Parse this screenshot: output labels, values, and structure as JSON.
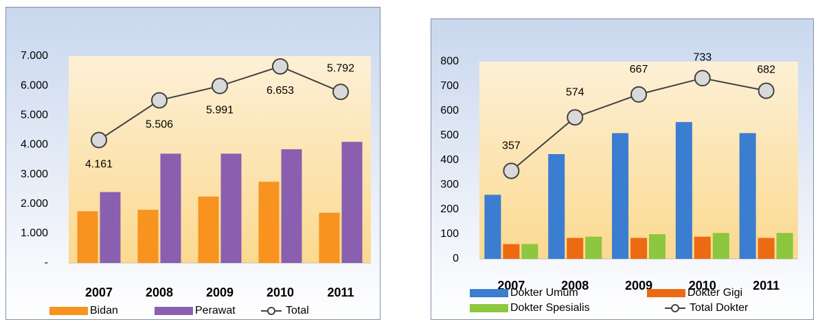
{
  "chart_data": [
    {
      "type": "bar",
      "categories": [
        "2007",
        "2008",
        "2009",
        "2010",
        "2011"
      ],
      "series": [
        {
          "name": "Bidan",
          "color": "#f7931e",
          "values": [
            1750,
            1800,
            2250,
            2750,
            1700
          ]
        },
        {
          "name": "Perawat",
          "color": "#8a5fb0",
          "values": [
            2400,
            3700,
            3700,
            3850,
            4100
          ]
        },
        {
          "name": "Total",
          "type": "line",
          "color": "#404040",
          "values": [
            4161,
            5506,
            5991,
            6653,
            5792
          ],
          "value_labels": [
            "4.161",
            "5.506",
            "5.991",
            "6.653",
            "5.792"
          ]
        }
      ],
      "ylim": [
        0,
        7000
      ],
      "yticks": [
        {
          "value": 0,
          "label": "-"
        },
        {
          "value": 1000,
          "label": "1.000"
        },
        {
          "value": 2000,
          "label": "2.000"
        },
        {
          "value": 3000,
          "label": "3.000"
        },
        {
          "value": 4000,
          "label": "4.000"
        },
        {
          "value": 5000,
          "label": "5.000"
        },
        {
          "value": 6000,
          "label": "6.000"
        },
        {
          "value": 7000,
          "label": "7.000"
        }
      ]
    },
    {
      "type": "bar",
      "categories": [
        "2007",
        "2008",
        "2009",
        "2010",
        "2011"
      ],
      "series": [
        {
          "name": "Dokter Umum",
          "color": "#3b7dd0",
          "values": [
            260,
            425,
            510,
            555,
            510
          ]
        },
        {
          "name": "Dokter Gigi",
          "color": "#ec6b12",
          "values": [
            60,
            85,
            85,
            90,
            85
          ]
        },
        {
          "name": "Dokter Spesialis",
          "color": "#8dc63f",
          "values": [
            60,
            90,
            100,
            105,
            105
          ]
        },
        {
          "name": "Total Dokter",
          "type": "line",
          "color": "#404040",
          "values": [
            357,
            574,
            667,
            733,
            682
          ]
        }
      ],
      "ylim": [
        0,
        800
      ],
      "yticks": [
        0,
        100,
        200,
        300,
        400,
        500,
        600,
        700,
        800
      ]
    }
  ]
}
